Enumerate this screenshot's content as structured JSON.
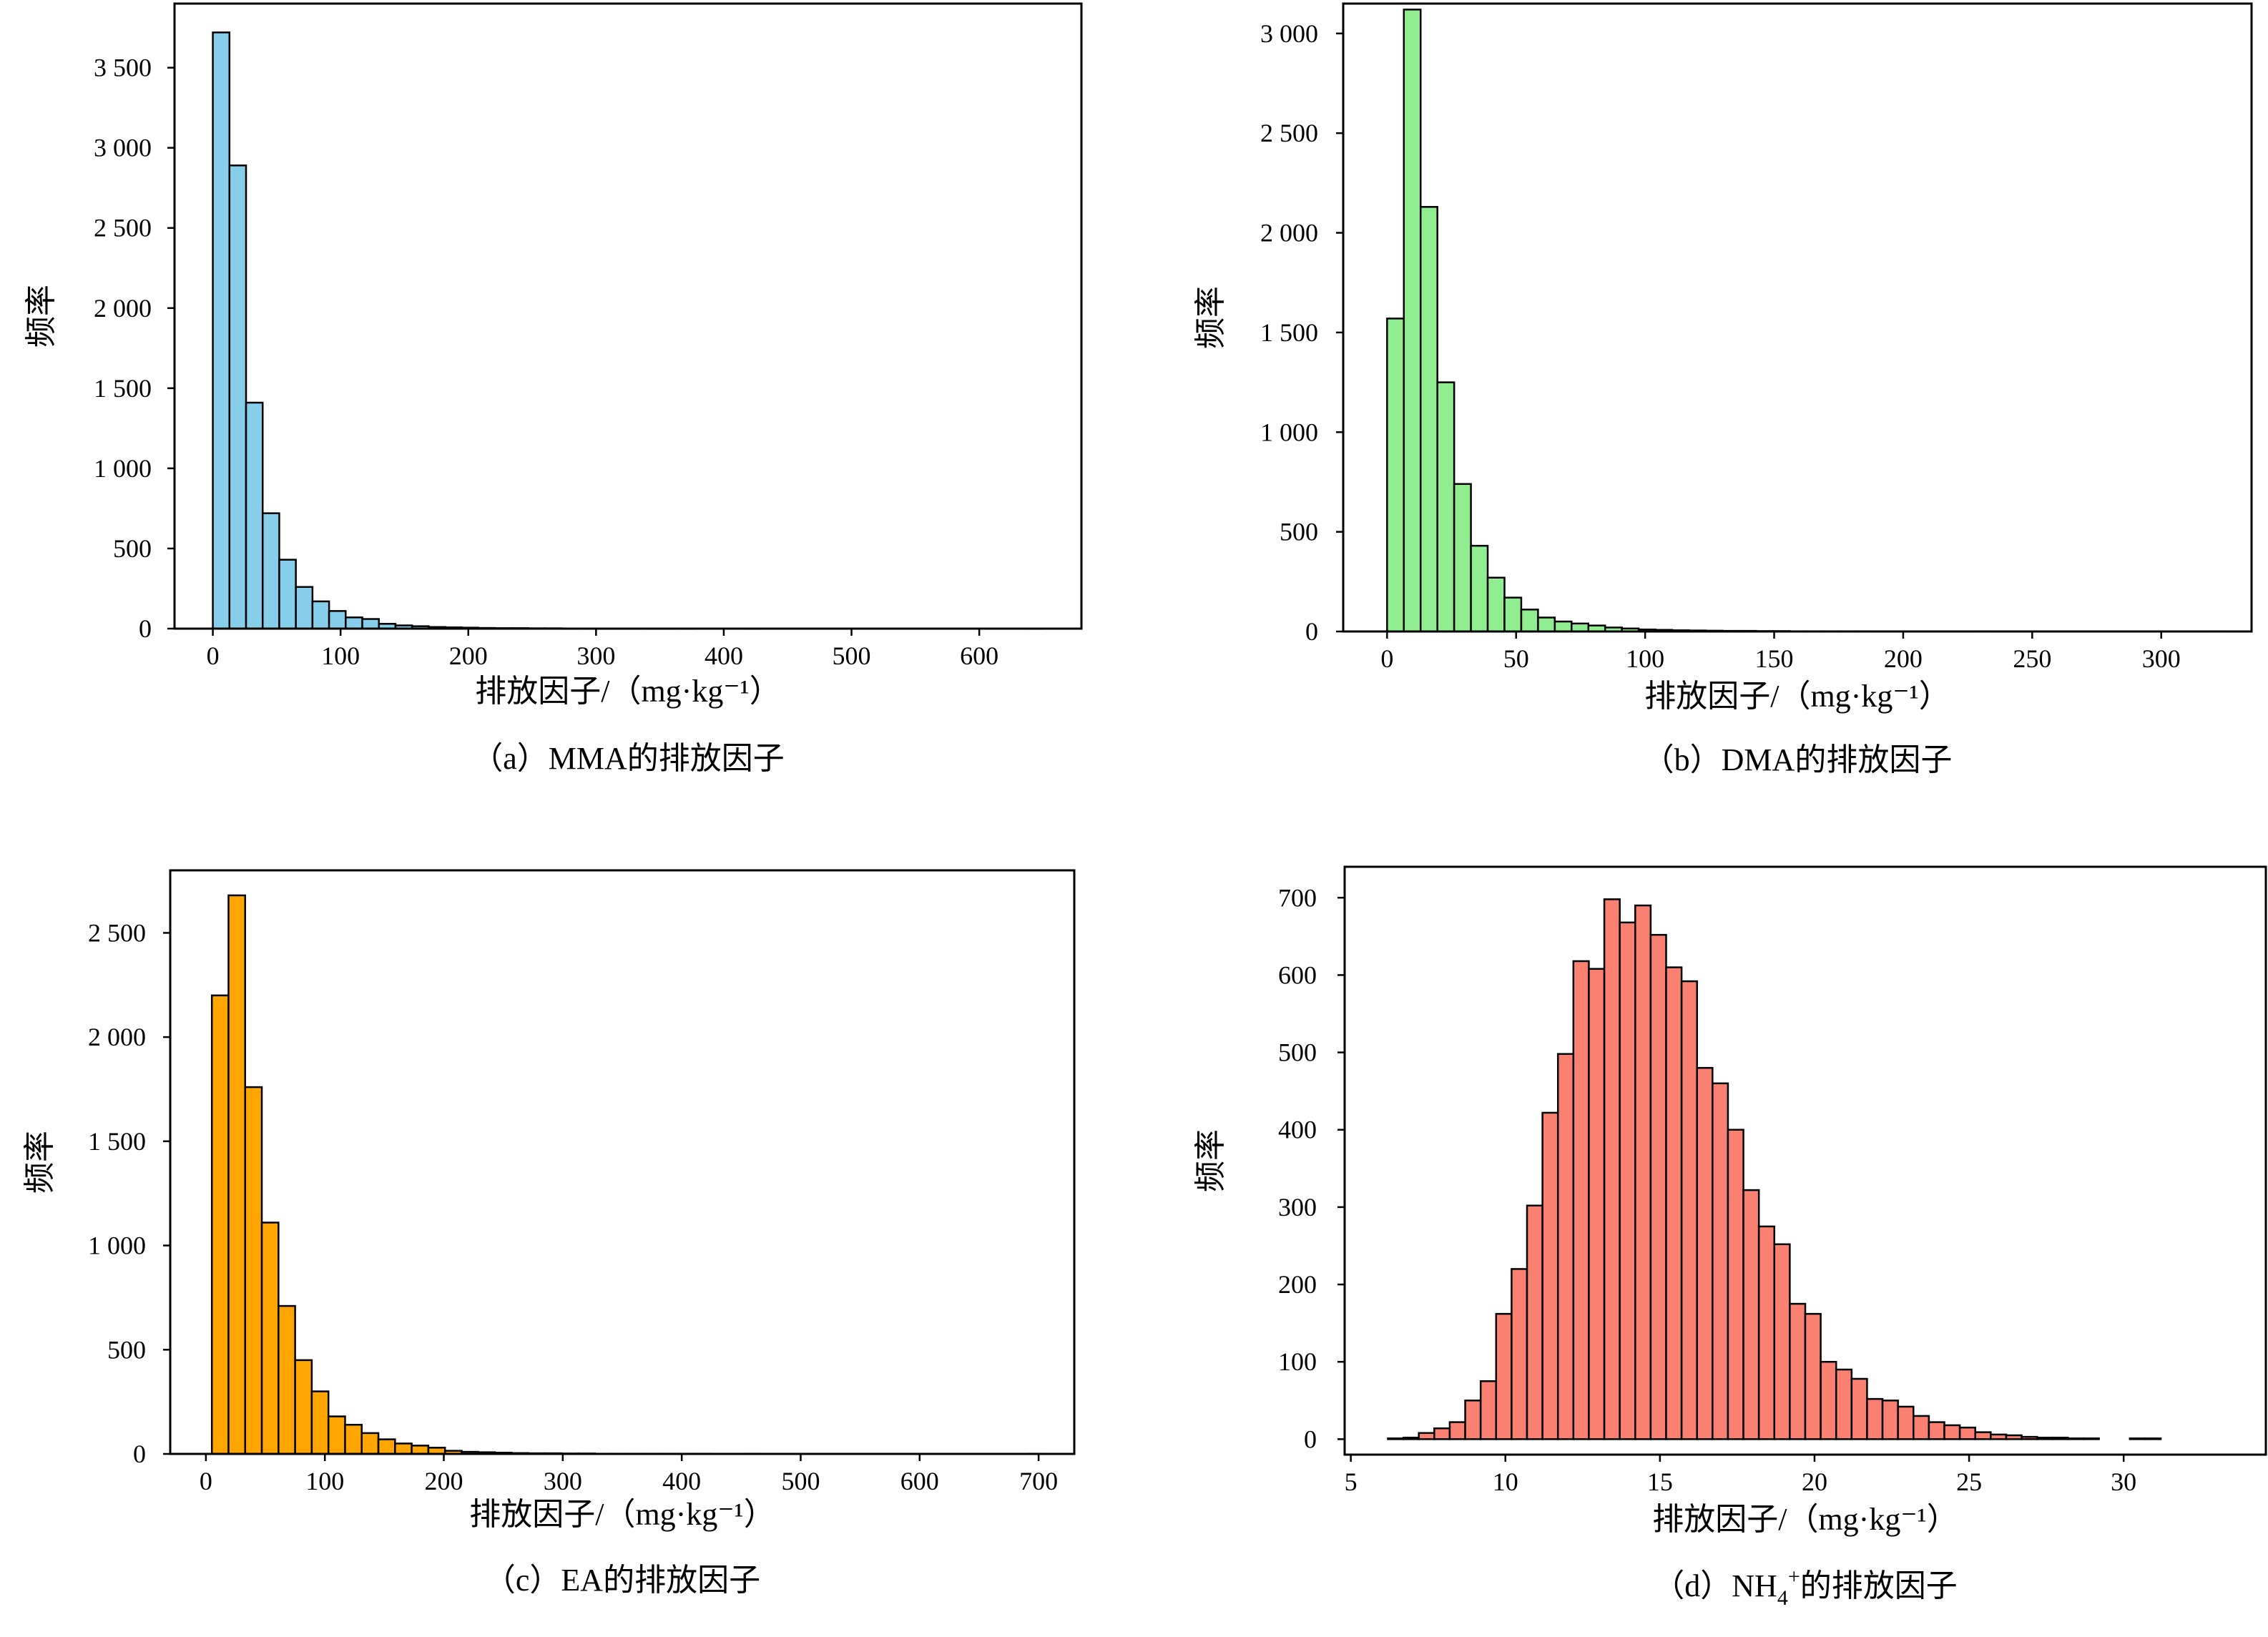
{
  "chart_data": [
    {
      "id": "a",
      "type": "bar",
      "caption": "（a）MMA的排放因子",
      "xlabel": "排放因子/（mg·kg⁻¹）",
      "ylabel": "频率",
      "xlim": [
        -30,
        680
      ],
      "ylim": [
        0,
        3900
      ],
      "xticks": [
        0,
        100,
        200,
        300,
        400,
        500,
        600
      ],
      "xtick_labels": [
        "0",
        "100",
        "200",
        "300",
        "400",
        "500",
        "600"
      ],
      "yticks": [
        0,
        500,
        1000,
        1500,
        2000,
        2500,
        3000,
        3500
      ],
      "ytick_labels": [
        "0",
        "500",
        "1 000",
        "1 500",
        "2 000",
        "2 500",
        "3 000",
        "3 500"
      ],
      "bar_color": "#87CEEB",
      "bin_start": 0,
      "bin_width": 13,
      "values": [
        3720,
        2890,
        1410,
        720,
        430,
        260,
        170,
        110,
        70,
        60,
        30,
        20,
        15,
        10,
        8,
        6,
        4,
        3,
        3,
        2,
        2,
        1,
        1,
        1,
        1,
        1,
        1,
        1,
        1,
        0,
        0,
        0,
        1,
        0,
        0,
        0,
        0,
        0,
        0,
        0,
        0,
        0,
        0,
        0,
        0,
        0,
        0,
        0,
        0,
        1
      ]
    },
    {
      "id": "b",
      "type": "bar",
      "caption": "（b）DMA的排放因子",
      "xlabel": "排放因子/（mg·kg⁻¹）",
      "ylabel": "频率",
      "xlim": [
        -17,
        335
      ],
      "ylim": [
        0,
        3150
      ],
      "xticks": [
        0,
        50,
        100,
        150,
        200,
        250,
        300
      ],
      "xtick_labels": [
        "0",
        "50",
        "100",
        "150",
        "200",
        "250",
        "300"
      ],
      "yticks": [
        0,
        500,
        1000,
        1500,
        2000,
        2500,
        3000
      ],
      "ytick_labels": [
        "0",
        "500",
        "1 000",
        "1 500",
        "2 000",
        "2 500",
        "3 000"
      ],
      "bar_color": "#90EE90",
      "bin_start": 0,
      "bin_width": 6.5,
      "values": [
        1570,
        3120,
        2130,
        1250,
        740,
        430,
        270,
        170,
        110,
        70,
        50,
        40,
        30,
        20,
        15,
        10,
        8,
        6,
        5,
        4,
        3,
        3,
        2,
        2,
        1,
        1,
        1,
        1,
        1,
        0,
        0,
        0,
        0,
        0,
        0,
        1,
        0,
        0,
        0,
        0,
        0,
        0,
        0,
        0,
        0,
        0,
        0,
        0,
        0,
        1
      ]
    },
    {
      "id": "c",
      "type": "bar",
      "caption": "（c）EA的排放因子",
      "xlabel": "排放因子/（mg·kg⁻¹）",
      "ylabel": "频率",
      "xlim": [
        -30,
        730
      ],
      "ylim": [
        0,
        2800
      ],
      "xticks": [
        0,
        100,
        200,
        300,
        400,
        500,
        600,
        700
      ],
      "xtick_labels": [
        "0",
        "100",
        "200",
        "300",
        "400",
        "500",
        "600",
        "700"
      ],
      "yticks": [
        0,
        500,
        1000,
        1500,
        2000,
        2500
      ],
      "ytick_labels": [
        "0",
        "500",
        "1 000",
        "1 500",
        "2 000",
        "2 500"
      ],
      "bar_color": "#FFA500",
      "bin_start": 5,
      "bin_width": 14,
      "values": [
        2200,
        2680,
        1760,
        1110,
        710,
        450,
        300,
        180,
        140,
        100,
        70,
        50,
        40,
        30,
        15,
        10,
        8,
        6,
        4,
        3,
        3,
        2,
        2,
        1,
        1,
        1,
        1,
        1,
        1,
        1,
        0,
        0,
        1,
        0,
        0,
        0,
        0,
        0,
        0,
        0,
        0,
        0,
        0,
        0,
        0,
        0,
        0,
        0,
        0,
        1
      ]
    },
    {
      "id": "d",
      "type": "bar",
      "caption": "（d）NH4+的排放因子",
      "caption_prefix": "（d）NH",
      "caption_sub": "4",
      "caption_sup": "+",
      "caption_suffix": "的排放因子",
      "xlabel": "排放因子/（mg·kg⁻¹）",
      "ylabel": "频率",
      "xlim": [
        4.8,
        34.6
      ],
      "ylim": [
        -20,
        740
      ],
      "xticks": [
        5,
        10,
        15,
        20,
        25,
        30
      ],
      "xtick_labels": [
        "5",
        "10",
        "15",
        "20",
        "25",
        "30"
      ],
      "yticks": [
        0,
        100,
        200,
        300,
        400,
        500,
        600,
        700
      ],
      "ytick_labels": [
        "0",
        "100",
        "200",
        "300",
        "400",
        "500",
        "600",
        "700"
      ],
      "bar_color": "#FA8072",
      "bin_start": 6.2,
      "bin_width": 0.5,
      "values": [
        1,
        2,
        8,
        14,
        22,
        50,
        75,
        162,
        220,
        302,
        422,
        498,
        618,
        608,
        698,
        668,
        690,
        652,
        610,
        592,
        480,
        460,
        400,
        322,
        275,
        252,
        175,
        162,
        100,
        90,
        78,
        52,
        50,
        42,
        30,
        22,
        18,
        15,
        9,
        6,
        5,
        3,
        2,
        2,
        1,
        1,
        0,
        0,
        1,
        1
      ]
    }
  ]
}
